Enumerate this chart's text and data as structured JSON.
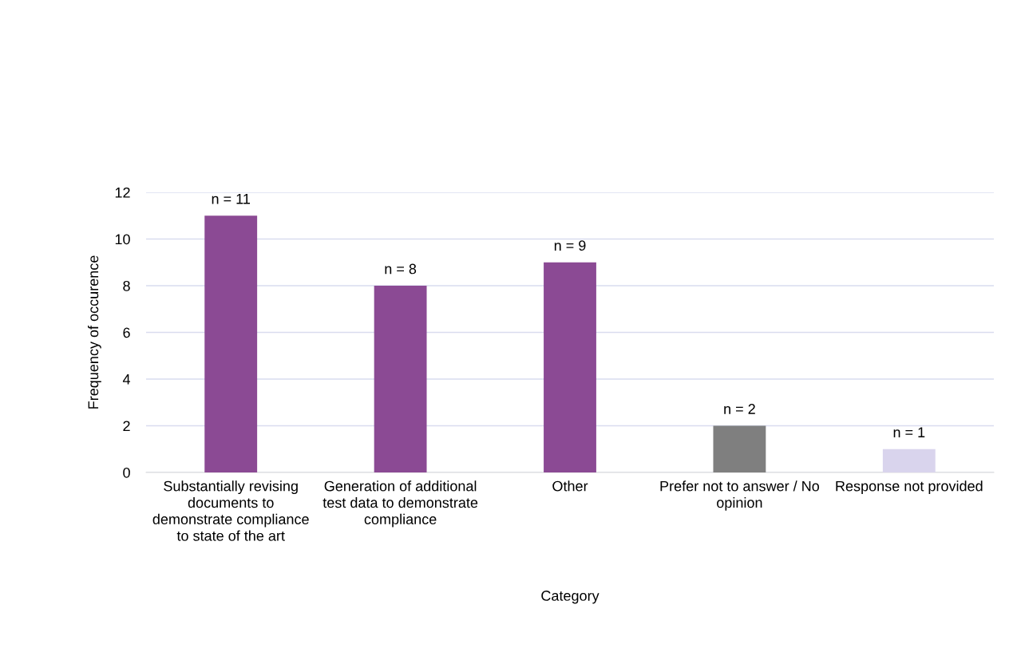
{
  "chart_data": {
    "type": "bar",
    "categories": [
      "Substantially revising documents to demonstrate compliance to state of the art",
      "Generation of additional test data to demonstrate compliance",
      "Other",
      "Prefer not to answer / No opinion",
      "Response not provided"
    ],
    "values": [
      11,
      8,
      9,
      2,
      1
    ],
    "colors": [
      "#8b4a94",
      "#8b4a94",
      "#8b4a94",
      "#7f7f7f",
      "#d9d4ed"
    ],
    "value_labels": [
      "n = 11",
      "n = 8",
      "n = 9",
      "n = 2",
      "n = 1"
    ],
    "xlabel": "Category",
    "ylabel": "Frequency of occurence",
    "ylim": [
      0,
      12
    ],
    "yticks": [
      0,
      2,
      4,
      6,
      8,
      10,
      12
    ],
    "grid": "y",
    "legend": false
  }
}
